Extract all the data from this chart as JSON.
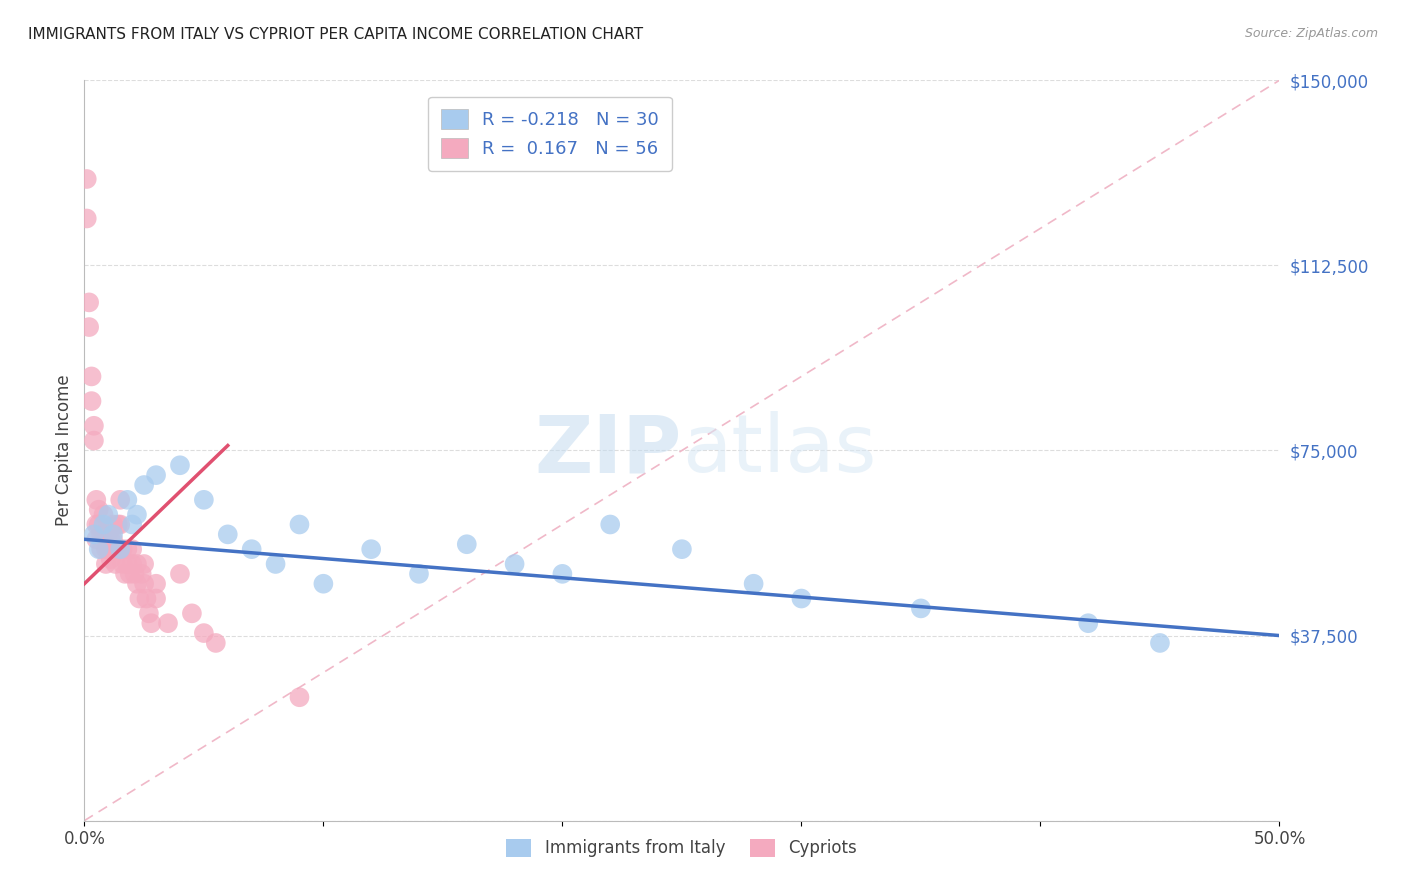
{
  "title": "IMMIGRANTS FROM ITALY VS CYPRIOT PER CAPITA INCOME CORRELATION CHART",
  "source": "Source: ZipAtlas.com",
  "ylabel": "Per Capita Income",
  "xlim": [
    0.0,
    0.5
  ],
  "ylim": [
    0,
    150000
  ],
  "yticks": [
    0,
    37500,
    75000,
    112500,
    150000
  ],
  "ytick_labels": [
    "",
    "$37,500",
    "$75,000",
    "$112,500",
    "$150,000"
  ],
  "xticks": [
    0.0,
    0.1,
    0.2,
    0.3,
    0.4,
    0.5
  ],
  "xtick_labels": [
    "0.0%",
    "",
    "",
    "",
    "",
    "50.0%"
  ],
  "color_blue": "#A8CBEE",
  "color_pink": "#F4AABF",
  "color_blue_line": "#4472C4",
  "color_pink_line": "#E05070",
  "color_diag": "#F0B8C8",
  "watermark_zip": "ZIP",
  "watermark_atlas": "atlas",
  "blue_line_x": [
    0.0,
    0.5
  ],
  "blue_line_y": [
    57000,
    37500
  ],
  "pink_line_x": [
    0.0,
    0.06
  ],
  "pink_line_y": [
    48000,
    76000
  ],
  "blue_scatter_x": [
    0.004,
    0.006,
    0.008,
    0.01,
    0.012,
    0.015,
    0.018,
    0.02,
    0.022,
    0.025,
    0.03,
    0.04,
    0.05,
    0.06,
    0.07,
    0.08,
    0.09,
    0.1,
    0.12,
    0.14,
    0.16,
    0.18,
    0.2,
    0.22,
    0.25,
    0.28,
    0.3,
    0.35,
    0.42,
    0.45
  ],
  "blue_scatter_y": [
    58000,
    55000,
    60000,
    62000,
    58000,
    55000,
    65000,
    60000,
    62000,
    68000,
    70000,
    72000,
    65000,
    58000,
    55000,
    52000,
    60000,
    48000,
    55000,
    50000,
    56000,
    52000,
    50000,
    60000,
    55000,
    48000,
    45000,
    43000,
    40000,
    36000
  ],
  "pink_scatter_x": [
    0.001,
    0.001,
    0.002,
    0.002,
    0.003,
    0.003,
    0.004,
    0.004,
    0.005,
    0.005,
    0.005,
    0.006,
    0.006,
    0.007,
    0.007,
    0.008,
    0.008,
    0.009,
    0.009,
    0.01,
    0.01,
    0.011,
    0.011,
    0.012,
    0.012,
    0.013,
    0.013,
    0.014,
    0.015,
    0.015,
    0.016,
    0.016,
    0.017,
    0.018,
    0.018,
    0.019,
    0.02,
    0.02,
    0.021,
    0.022,
    0.022,
    0.023,
    0.024,
    0.025,
    0.025,
    0.026,
    0.027,
    0.028,
    0.03,
    0.03,
    0.035,
    0.04,
    0.045,
    0.05,
    0.055,
    0.09
  ],
  "pink_scatter_y": [
    130000,
    122000,
    105000,
    100000,
    90000,
    85000,
    80000,
    77000,
    65000,
    60000,
    57000,
    63000,
    60000,
    58000,
    55000,
    62000,
    58000,
    55000,
    52000,
    58000,
    55000,
    57000,
    53000,
    60000,
    57000,
    55000,
    52000,
    60000,
    65000,
    60000,
    55000,
    52000,
    50000,
    55000,
    52000,
    50000,
    55000,
    52000,
    50000,
    52000,
    48000,
    45000,
    50000,
    52000,
    48000,
    45000,
    42000,
    40000,
    48000,
    45000,
    40000,
    50000,
    42000,
    38000,
    36000,
    25000
  ]
}
